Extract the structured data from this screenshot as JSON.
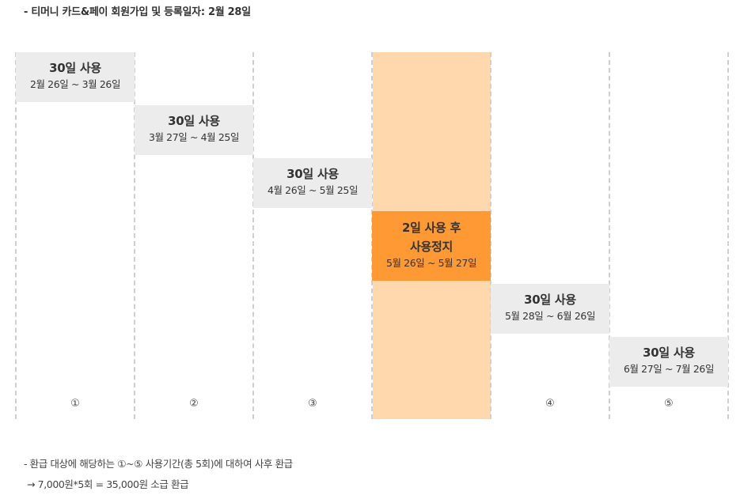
{
  "header": {
    "text": "- 티머니 카드&페이 회원가입 및 등록일자: 2월 28일"
  },
  "colors": {
    "period_bg": "#ececec",
    "stop_bg": "#ff9933",
    "stop_column_bg": "#ffd8ad",
    "divider": "#cfcfcf"
  },
  "periods": [
    {
      "title": "30일 사용",
      "dates": "2월 26일 ~ 3월 26일"
    },
    {
      "title": "30일 사용",
      "dates": "3월 27일 ~ 4월 25일"
    },
    {
      "title": "30일 사용",
      "dates": "4월 26일 ~ 5월 25일"
    },
    {
      "title_line1": "2일 사용 후",
      "title_line2": "사용정지",
      "dates": "5월 26일 ~ 5월 27일"
    },
    {
      "title": "30일 사용",
      "dates": "5월 28일 ~ 6월 26일"
    },
    {
      "title": "30일 사용",
      "dates": "6월 27일 ~ 7월 26일"
    }
  ],
  "markers": [
    "①",
    "②",
    "③",
    "④",
    "⑤"
  ],
  "notes": {
    "line1": "- 환급 대상에 해당하는 ①~⑤ 사용기간(총 5회)에 대하여 사후 환급",
    "line2": "→ 7,000원*5회 = 35,000원 소급 환급"
  }
}
